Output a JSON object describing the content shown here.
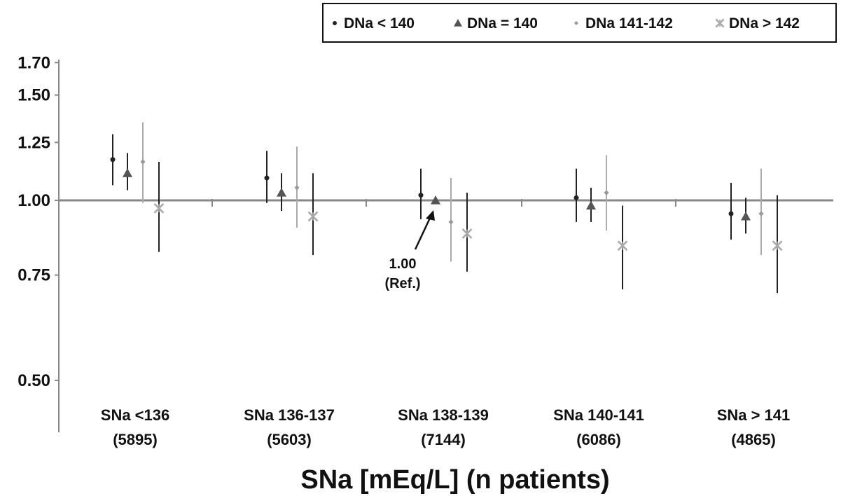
{
  "chart_data": {
    "type": "scatter",
    "xlabel": "SNa [mEq/L] (n patients)",
    "ylabel": "",
    "y_scale": "log",
    "ylim": [
      0.4,
      1.75
    ],
    "grid": false,
    "legend_position": "top-right",
    "yticks": [
      0.5,
      0.75,
      1.0,
      1.25,
      1.5,
      1.7
    ],
    "ytick_labels": [
      "0.50",
      "0.75",
      "1.00",
      "1.25",
      "1.50",
      "1.70"
    ],
    "categories": [
      {
        "label": "SNa <136",
        "n": "(5895)"
      },
      {
        "label": "SNa 136-137",
        "n": "(5603)"
      },
      {
        "label": "SNa 138-139",
        "n": "(7144)"
      },
      {
        "label": "SNa 140-141",
        "n": "(6086)"
      },
      {
        "label": "SNa > 141",
        "n": "(4865)"
      }
    ],
    "series": [
      {
        "name": "DNa < 140",
        "marker": "circle",
        "color": "#222222",
        "values": [
          1.17,
          1.09,
          1.02,
          1.01,
          0.95
        ],
        "lower": [
          1.06,
          0.99,
          0.93,
          0.92,
          0.86
        ],
        "upper": [
          1.29,
          1.21,
          1.13,
          1.13,
          1.07
        ]
      },
      {
        "name": "DNa = 140",
        "marker": "triangle",
        "color": "#555555",
        "values": [
          1.11,
          1.03,
          1.0,
          0.98,
          0.94
        ],
        "lower": [
          1.04,
          0.96,
          null,
          0.92,
          0.88
        ],
        "upper": [
          1.2,
          1.11,
          null,
          1.05,
          1.01
        ]
      },
      {
        "name": "DNa 141-142",
        "marker": "diamond",
        "color": "#999999",
        "values": [
          1.16,
          1.05,
          0.92,
          1.03,
          0.95
        ],
        "lower": [
          0.99,
          0.9,
          0.79,
          0.89,
          0.81
        ],
        "upper": [
          1.35,
          1.23,
          1.09,
          1.19,
          1.13
        ]
      },
      {
        "name": "DNa > 142",
        "marker": "x",
        "color": "#aaaaaa",
        "values": [
          0.97,
          0.94,
          0.88,
          0.84,
          0.84
        ],
        "lower": [
          0.82,
          0.81,
          0.76,
          0.71,
          0.7
        ],
        "upper": [
          1.16,
          1.11,
          1.03,
          0.98,
          1.02
        ]
      }
    ],
    "reference_line": 1.0,
    "annotation": {
      "line1": "1.00",
      "line2": "(Ref.)"
    }
  }
}
